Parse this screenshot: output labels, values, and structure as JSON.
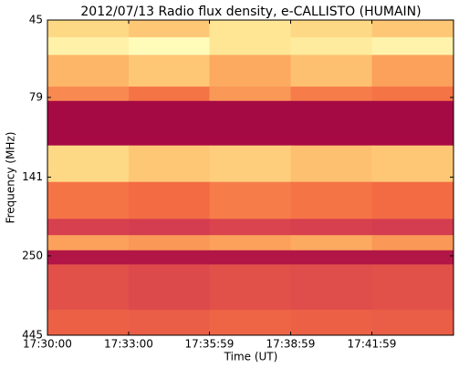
{
  "chart_data": {
    "type": "heatmap",
    "title": "2012/07/13  Radio flux density, e-CALLISTO (HUMAIN)",
    "xlabel": "Time (UT)",
    "ylabel": "Frequency (MHz)",
    "xlim": [
      "17:30:00",
      "17:45:00"
    ],
    "xticks": [
      "17:30:00",
      "17:33:00",
      "17:35:59",
      "17:38:59",
      "17:41:59"
    ],
    "ylim": [
      45,
      445
    ],
    "yticks": [
      45,
      79,
      141,
      250,
      445
    ],
    "ylog": true,
    "yinverted": true,
    "y_bins": [
      45,
      51,
      58,
      73,
      81,
      112,
      146,
      191,
      215,
      240,
      266,
      370,
      445
    ],
    "zlim": [
      0,
      1
    ],
    "colormap": [
      "#9e0142",
      "#d53e4f",
      "#f46d43",
      "#fdae61",
      "#fee08b",
      "#ffffbf",
      "#abdda4",
      "#3288bd"
    ],
    "z": [
      [
        0.55,
        0.5,
        0.6,
        0.55,
        0.5
      ],
      [
        0.65,
        0.7,
        0.6,
        0.62,
        0.66
      ],
      [
        0.45,
        0.5,
        0.42,
        0.48,
        0.4
      ],
      [
        0.35,
        0.3,
        0.38,
        0.32,
        0.3
      ],
      [
        0.02,
        0.02,
        0.02,
        0.02,
        0.02
      ],
      [
        0.55,
        0.5,
        0.52,
        0.48,
        0.5
      ],
      [
        0.3,
        0.28,
        0.32,
        0.3,
        0.28
      ],
      [
        0.15,
        0.14,
        0.16,
        0.15,
        0.14
      ],
      [
        0.4,
        0.38,
        0.4,
        0.42,
        0.38
      ],
      [
        0.05,
        0.05,
        0.05,
        0.05,
        0.05
      ],
      [
        0.2,
        0.18,
        0.2,
        0.19,
        0.2
      ],
      [
        0.25,
        0.24,
        0.26,
        0.25,
        0.24
      ]
    ]
  }
}
